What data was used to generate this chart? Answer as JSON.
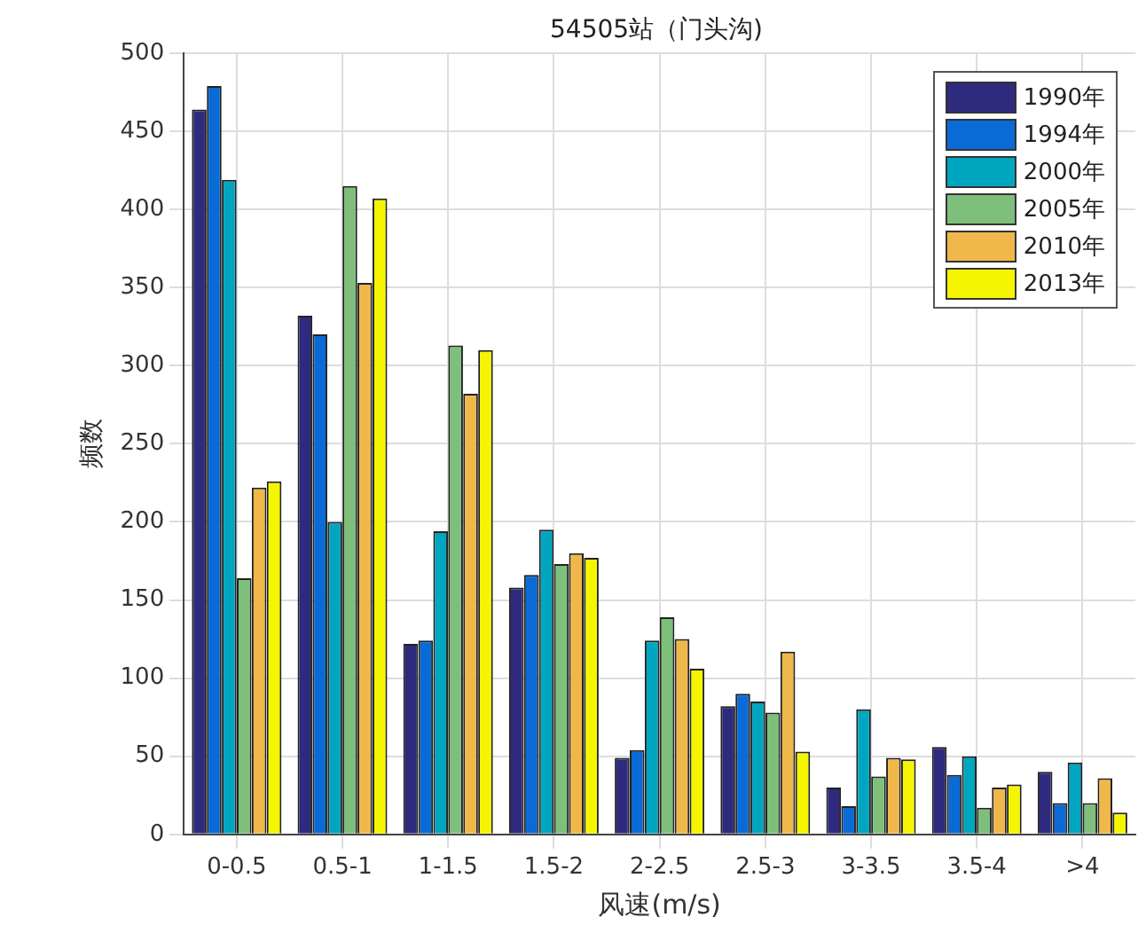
{
  "chart_data": {
    "type": "bar",
    "title": "54505站（门头沟)",
    "xlabel": "风速(m/s)",
    "ylabel": "频数",
    "categories": [
      "0-0.5",
      "0.5-1",
      "1-1.5",
      "1.5-2",
      "2-2.5",
      "2.5-3",
      "3-3.5",
      "3.5-4",
      ">4"
    ],
    "series": [
      {
        "name": "1990年",
        "color": "#2e2a7e",
        "values": [
          464,
          332,
          122,
          158,
          49,
          82,
          30,
          56,
          40
        ]
      },
      {
        "name": "1994年",
        "color": "#0a6ad6",
        "values": [
          479,
          320,
          124,
          166,
          54,
          90,
          18,
          38,
          20
        ]
      },
      {
        "name": "2000年",
        "color": "#00a6c0",
        "values": [
          419,
          200,
          194,
          195,
          124,
          85,
          80,
          50,
          46
        ]
      },
      {
        "name": "2005年",
        "color": "#7dbf7b",
        "values": [
          164,
          415,
          313,
          173,
          139,
          78,
          37,
          17,
          20
        ]
      },
      {
        "name": "2010年",
        "color": "#f0b84a",
        "values": [
          222,
          353,
          282,
          180,
          125,
          117,
          49,
          30,
          36
        ]
      },
      {
        "name": "2013年",
        "color": "#f5f500",
        "values": [
          226,
          407,
          310,
          177,
          106,
          53,
          48,
          32,
          14
        ]
      }
    ],
    "ylim": [
      0,
      500
    ],
    "yticks": [
      0,
      50,
      100,
      150,
      200,
      250,
      300,
      350,
      400,
      450,
      500
    ],
    "grid": true,
    "legend": "top right"
  }
}
